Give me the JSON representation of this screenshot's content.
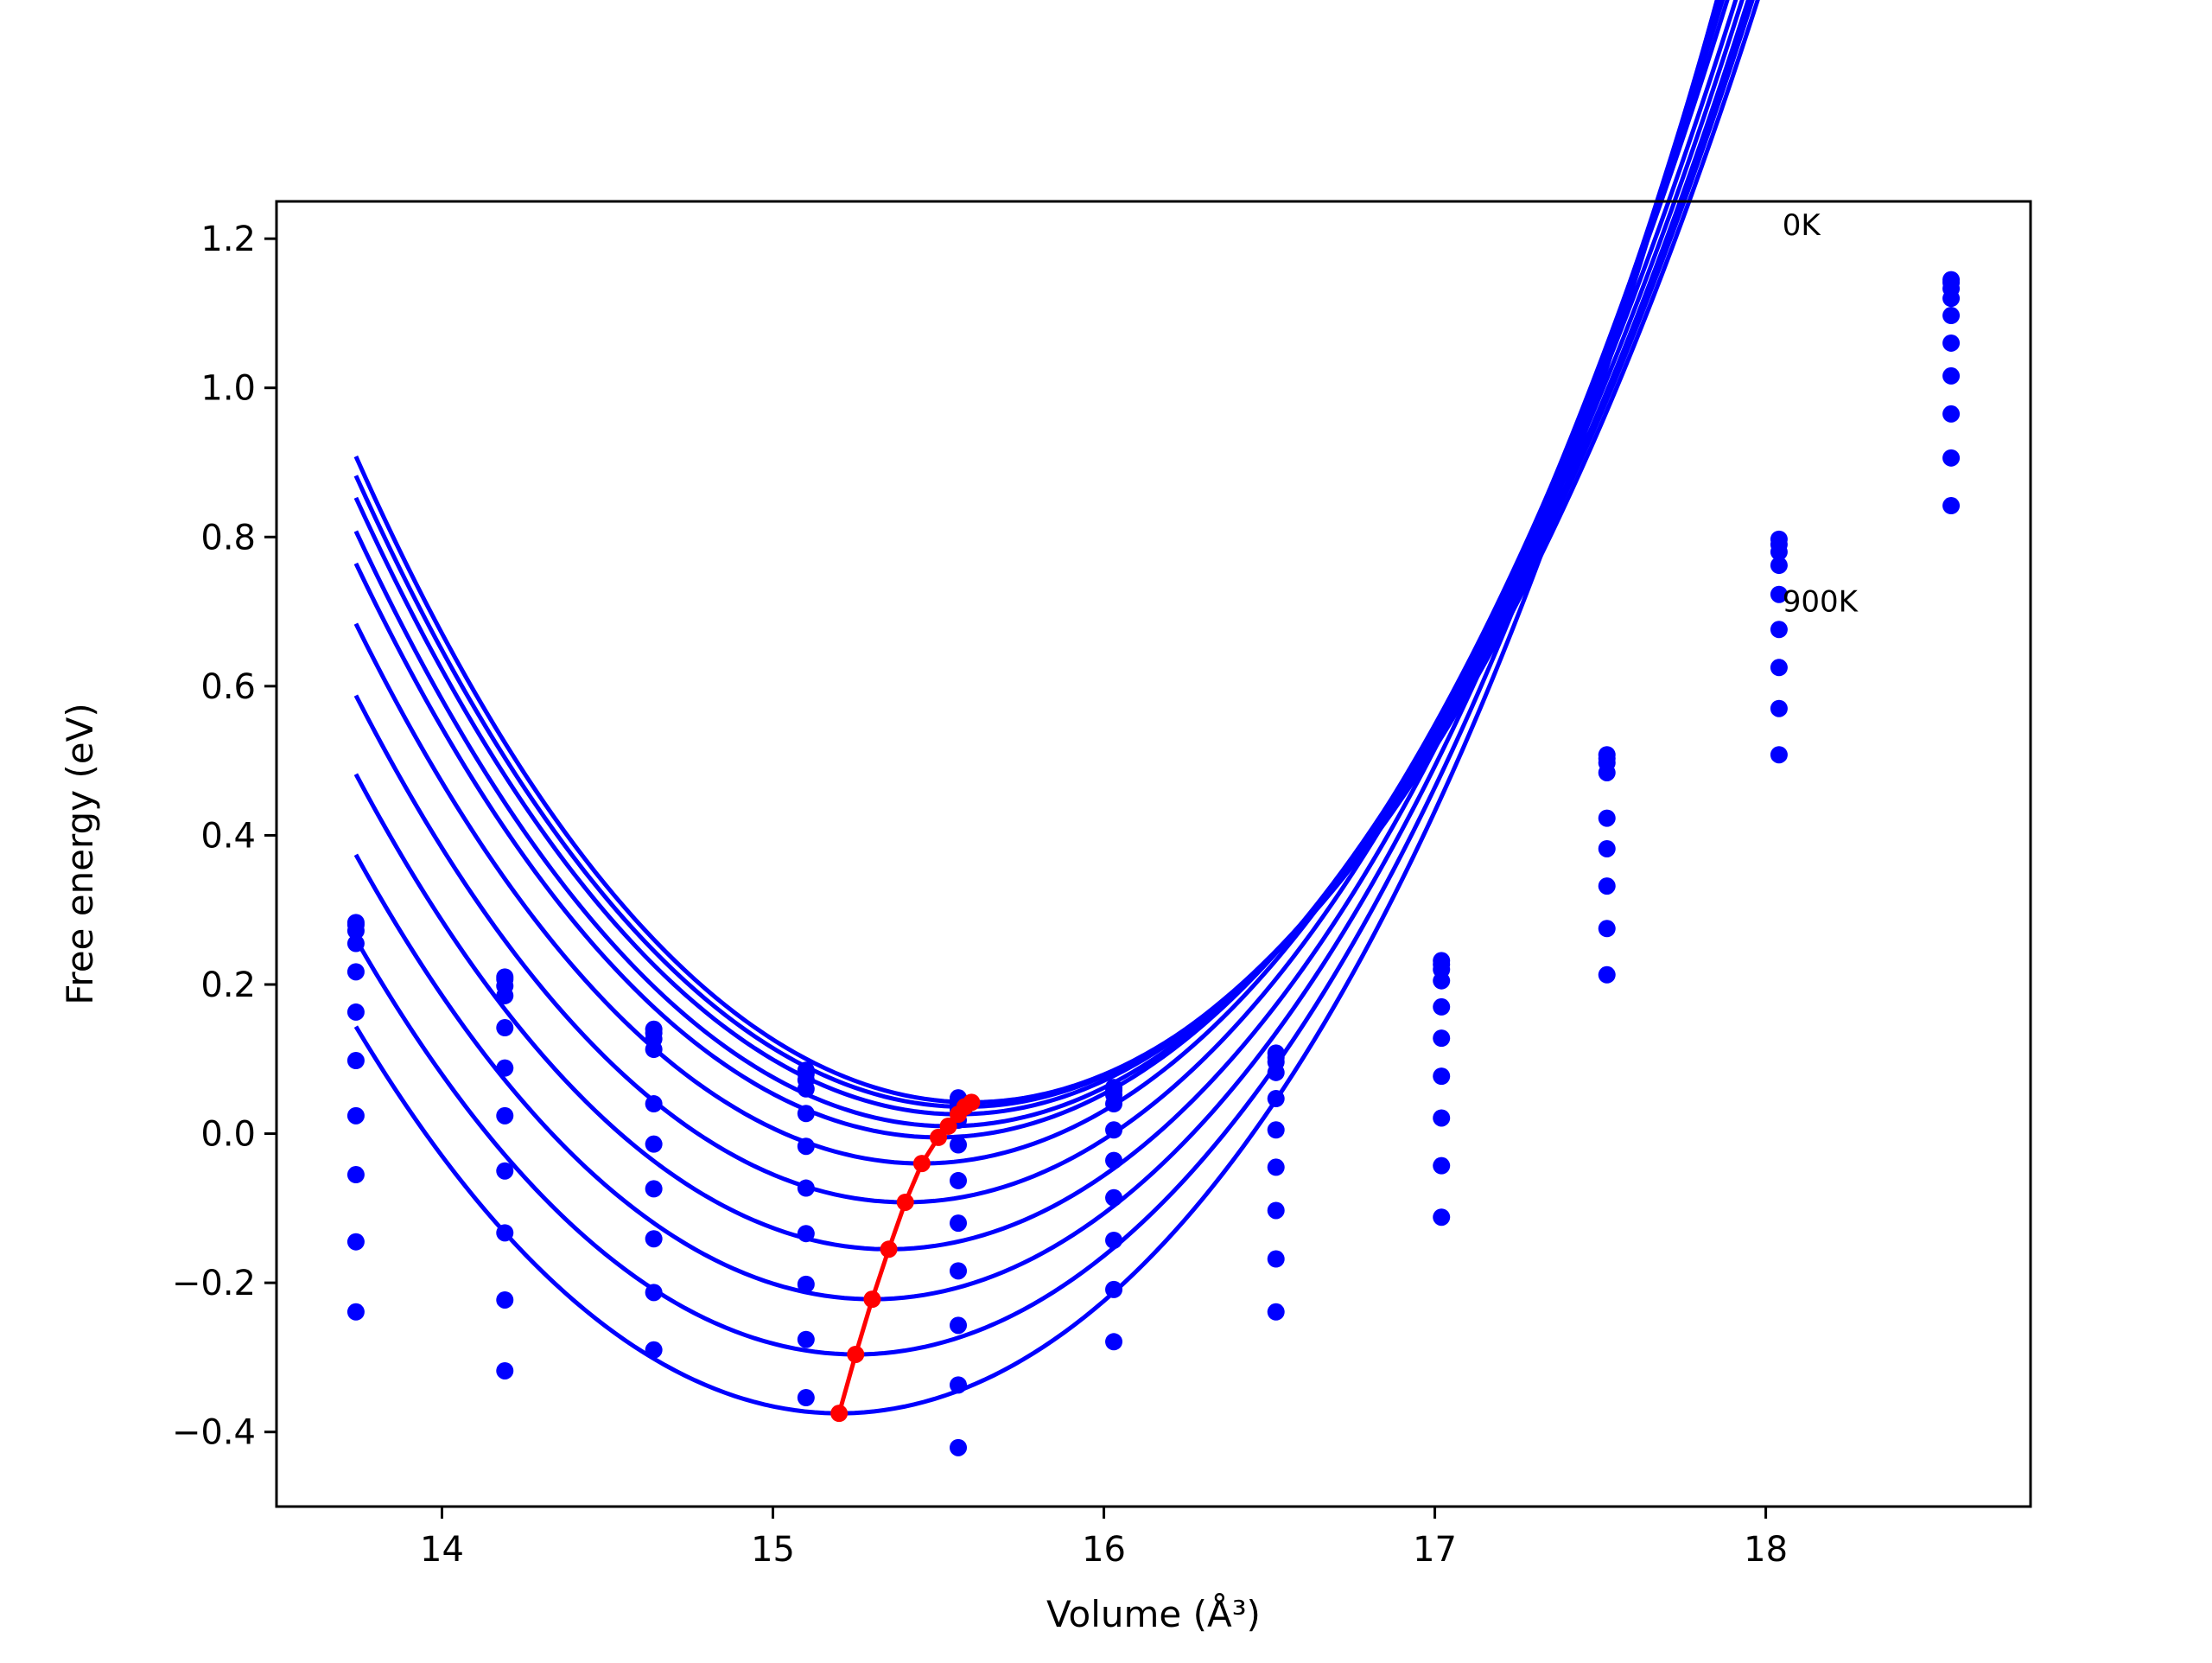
{
  "chart_data": {
    "type": "scatter",
    "title": "",
    "xlabel": "Volume (Å³)",
    "ylabel": "Free energy (eV)",
    "xlim": [
      13.5,
      18.8
    ],
    "ylim": [
      -0.5,
      1.25
    ],
    "grid": false,
    "x_ticks": [
      14,
      15,
      16,
      17,
      18
    ],
    "x_tick_labels": [
      "14",
      "15",
      "16",
      "17",
      "18"
    ],
    "y_ticks": [
      -0.4,
      -0.2,
      0.0,
      0.2,
      0.4,
      0.6,
      0.8,
      1.0,
      1.2
    ],
    "y_tick_labels": [
      "−0.4",
      "−0.2",
      "0.0",
      "0.2",
      "0.4",
      "0.6",
      "0.8",
      "1.0",
      "1.2"
    ],
    "annotations": [
      {
        "text": "0K",
        "x": 18.05,
        "y": 1.205
      },
      {
        "text": "900K",
        "x": 18.05,
        "y": 0.7
      }
    ],
    "volumes": [
      13.74,
      14.19,
      14.64,
      15.1,
      15.56,
      16.03,
      16.52,
      17.02,
      17.52,
      18.04,
      18.56
    ],
    "fit_x_range": [
      13.74,
      18.56
    ],
    "colors": {
      "series": "#0000ff",
      "minimum": "#ff0000"
    },
    "series": [
      {
        "values": [
          0.283,
          0.21,
          0.14,
          0.085,
          0.048,
          0.062,
          0.108,
          0.232,
          0.508,
          0.797,
          1.145
        ]
      },
      {
        "values": [
          0.28,
          0.207,
          0.135,
          0.08,
          0.04,
          0.058,
          0.102,
          0.227,
          0.503,
          0.79,
          1.141
        ]
      },
      {
        "values": [
          0.272,
          0.198,
          0.127,
          0.072,
          0.032,
          0.052,
          0.096,
          0.22,
          0.497,
          0.78,
          1.133
        ]
      },
      {
        "values": [
          0.255,
          0.185,
          0.113,
          0.06,
          0.018,
          0.04,
          0.082,
          0.205,
          0.484,
          0.762,
          1.12
        ]
      },
      {
        "values": [
          0.217,
          0.142,
          0.04,
          0.027,
          -0.015,
          0.005,
          0.047,
          0.17,
          0.423,
          0.723,
          1.097
        ]
      },
      {
        "values": [
          0.163,
          0.088,
          -0.014,
          -0.017,
          -0.063,
          -0.036,
          0.005,
          0.128,
          0.382,
          0.676,
          1.06
        ]
      },
      {
        "values": [
          0.098,
          0.024,
          -0.074,
          -0.073,
          -0.12,
          -0.086,
          -0.045,
          0.077,
          0.332,
          0.625,
          1.016
        ]
      },
      {
        "values": [
          0.024,
          -0.05,
          -0.141,
          -0.134,
          -0.184,
          -0.143,
          -0.103,
          0.021,
          0.275,
          0.57,
          0.965
        ]
      },
      {
        "values": [
          -0.055,
          -0.133,
          -0.213,
          -0.202,
          -0.257,
          -0.209,
          -0.168,
          -0.043,
          0.213,
          0.508,
          0.906
        ]
      },
      {
        "values": [
          -0.145,
          -0.223,
          -0.29,
          -0.276,
          -0.337,
          -0.279,
          -0.239,
          -0.112,
          null,
          null,
          0.842
        ]
      },
      {
        "values": [
          -0.239,
          -0.318,
          null,
          -0.354,
          -0.421,
          null,
          null,
          null,
          null,
          null,
          null
        ]
      }
    ],
    "fit_curves": [
      {
        "v0": 15.6,
        "e0": 0.042,
        "k": 0.232,
        "c": 0.0053
      },
      {
        "v0": 15.58,
        "e0": 0.036,
        "k": 0.232,
        "c": 0.0053
      },
      {
        "v0": 15.56,
        "e0": 0.026,
        "k": 0.232,
        "c": 0.0053
      },
      {
        "v0": 15.53,
        "e0": 0.01,
        "k": 0.232,
        "c": 0.0053
      },
      {
        "v0": 15.5,
        "e0": -0.005,
        "k": 0.232,
        "c": 0.0053
      },
      {
        "v0": 15.45,
        "e0": -0.04,
        "k": 0.232,
        "c": 0.0053
      },
      {
        "v0": 15.4,
        "e0": -0.092,
        "k": 0.232,
        "c": 0.0053
      },
      {
        "v0": 15.35,
        "e0": -0.155,
        "k": 0.232,
        "c": 0.0053
      },
      {
        "v0": 15.3,
        "e0": -0.222,
        "k": 0.232,
        "c": 0.0053
      },
      {
        "v0": 15.25,
        "e0": -0.296,
        "k": 0.232,
        "c": 0.0053
      },
      {
        "v0": 15.2,
        "e0": -0.375,
        "k": 0.232,
        "c": 0.0053
      }
    ],
    "minimum_path": {
      "x": [
        15.6,
        15.58,
        15.56,
        15.53,
        15.5,
        15.45,
        15.4,
        15.35,
        15.3,
        15.25,
        15.2
      ],
      "y": [
        0.042,
        0.036,
        0.026,
        0.01,
        -0.005,
        -0.04,
        -0.092,
        -0.155,
        -0.222,
        -0.296,
        -0.375
      ]
    }
  }
}
